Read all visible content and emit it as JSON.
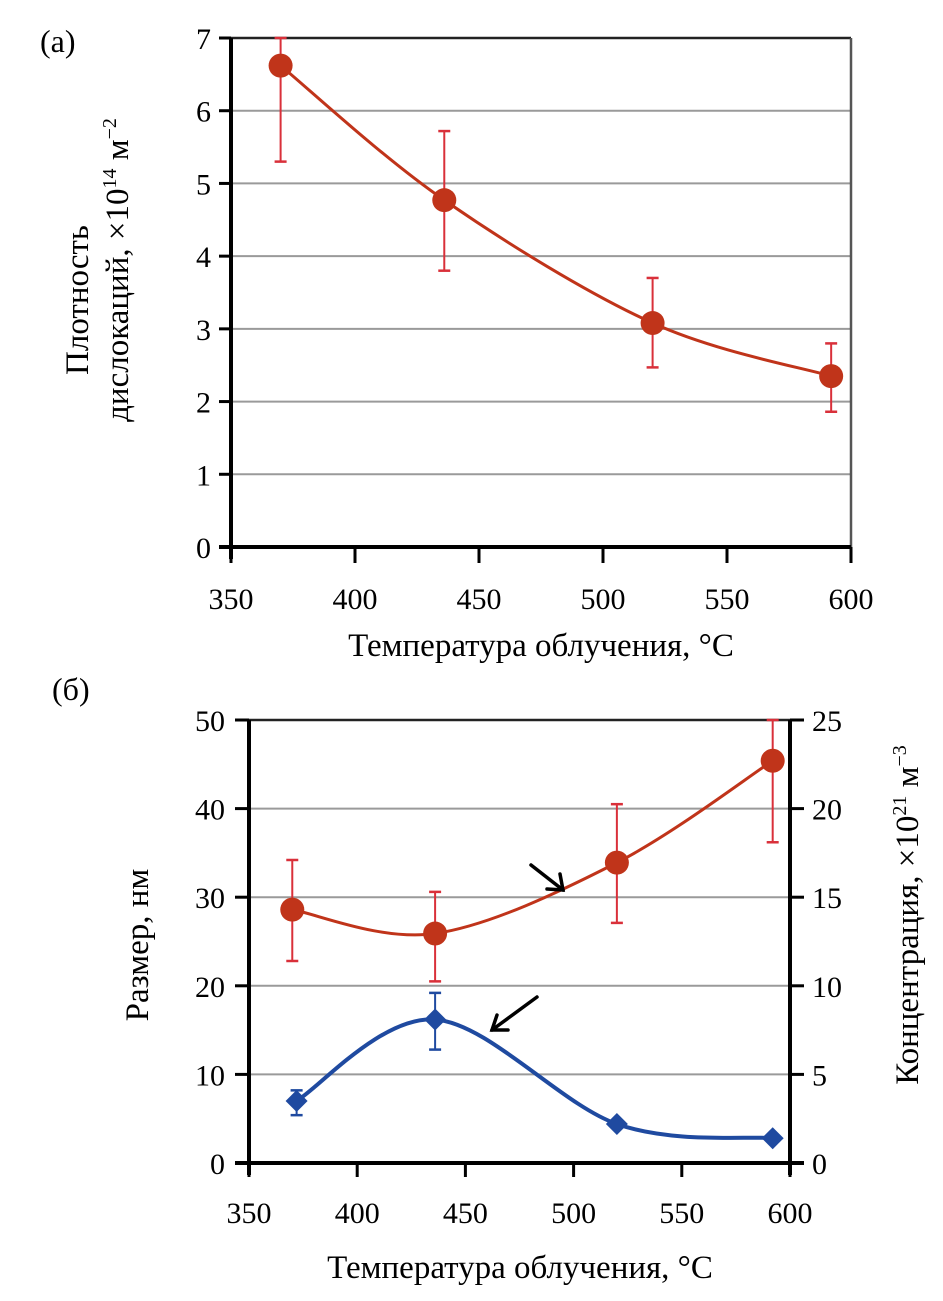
{
  "chart_data": [
    {
      "panel_label": "(a)",
      "type": "line",
      "title": "",
      "xlabel": "Температура облучения, °C",
      "ylabel_line1": "Плотность",
      "ylabel_line2": "дислокаций, ×10",
      "ylabel_exp": "14",
      "ylabel_unit": " м",
      "ylabel_unit_exp": "−2",
      "xlim": [
        350,
        600
      ],
      "ylim": [
        0,
        7
      ],
      "xticks": [
        "350",
        "400",
        "450",
        "500",
        "550",
        "600"
      ],
      "yticks": [
        "0",
        "1",
        "2",
        "3",
        "4",
        "5",
        "6",
        "7"
      ],
      "grid": true,
      "series": [
        {
          "name": "dislocation density",
          "color": "#c0341a",
          "errcolor": "#d9303a",
          "marker": "circle",
          "x": [
            370,
            436,
            520,
            592
          ],
          "y": [
            6.62,
            4.77,
            3.08,
            2.35
          ],
          "err_low": [
            5.3,
            3.8,
            2.47,
            1.86
          ],
          "err_high": [
            7.0,
            5.72,
            3.7,
            2.8
          ]
        }
      ]
    },
    {
      "panel_label": "(б)",
      "type": "line",
      "title": "",
      "xlabel": "Температура облучения, °C",
      "ylabel_left": "Размер, нм",
      "ylabel_right": "Концентрация, ×10",
      "ylabel_right_exp": "21",
      "ylabel_right_unit": " м",
      "ylabel_right_unit_exp": "−3",
      "xlim": [
        350,
        600
      ],
      "ylim_left": [
        0,
        50
      ],
      "ylim_right": [
        0,
        25
      ],
      "xticks": [
        "350",
        "400",
        "450",
        "500",
        "550",
        "600"
      ],
      "yticks_left": [
        "0",
        "10",
        "20",
        "30",
        "40",
        "50"
      ],
      "yticks_right": [
        "0",
        "5",
        "10",
        "15",
        "20",
        "25"
      ],
      "grid": true,
      "series": [
        {
          "name": "size (left axis)",
          "axis": "left",
          "color": "#c0341a",
          "errcolor": "#d9303a",
          "marker": "circle",
          "x": [
            370,
            436,
            520,
            592
          ],
          "y": [
            28.6,
            25.9,
            33.9,
            45.4
          ],
          "err_low": [
            22.8,
            20.5,
            27.1,
            36.2
          ],
          "err_high": [
            34.2,
            30.6,
            40.5,
            50.0
          ]
        },
        {
          "name": "concentration (right axis)",
          "axis": "right",
          "color": "#1f4aa0",
          "errcolor": "#1f4aa0",
          "marker": "diamond",
          "x": [
            372,
            436,
            520,
            592
          ],
          "y": [
            3.5,
            8.1,
            2.2,
            1.4
          ],
          "err_low": [
            2.7,
            6.4,
            2.2,
            1.4
          ],
          "err_high": [
            4.1,
            9.6,
            2.2,
            1.4
          ]
        }
      ],
      "annotations": [
        {
          "type": "arrow",
          "points_to": "size curve",
          "direction": "down-right"
        },
        {
          "type": "arrow",
          "points_to": "concentration curve",
          "direction": "down-left"
        }
      ]
    }
  ]
}
